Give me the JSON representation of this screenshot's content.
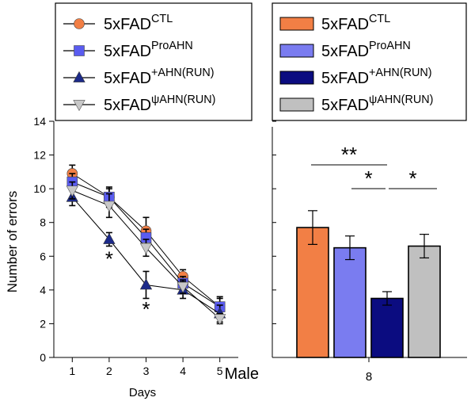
{
  "colors": {
    "ctl": "#f27f45",
    "pro": "#7a7cf0",
    "run": "#0b0c80",
    "psi": "#c0c0c0",
    "psi_marker": "#c8c8c8"
  },
  "legend_left": {
    "entries": [
      {
        "base": "5xFAD",
        "sup": "CTL",
        "marker": "circle",
        "color": "#f27f45"
      },
      {
        "base": "5xFAD",
        "sup": "ProAHN",
        "marker": "square",
        "color": "#5a5cf0"
      },
      {
        "base": "5xFAD",
        "sup": "+AHN(RUN)",
        "marker": "triangle-up",
        "color": "#1c2a8a"
      },
      {
        "base": "5xFAD",
        "sup": "ψAHN(RUN)",
        "marker": "triangle-down",
        "color": "#c8c8c8"
      }
    ]
  },
  "legend_right": {
    "entries": [
      {
        "base": "5xFAD",
        "sup": "CTL",
        "color": "#f27f45"
      },
      {
        "base": "5xFAD",
        "sup": "ProAHN",
        "color": "#7a7cf0"
      },
      {
        "base": "5xFAD",
        "sup": "+AHN(RUN)",
        "color": "#0b0c80"
      },
      {
        "base": "5xFAD",
        "sup": "ψAHN(RUN)",
        "color": "#c0c0c0"
      }
    ]
  },
  "chart_data": [
    {
      "type": "line",
      "xlabel": "Days",
      "ylabel": "Number of errors",
      "x": [
        1,
        2,
        3,
        4,
        5
      ],
      "xlim": [
        0.5,
        5.5
      ],
      "ylim": [
        0,
        14
      ],
      "yticks": [
        0,
        2,
        4,
        6,
        8,
        10,
        12,
        14
      ],
      "series": [
        {
          "name": "5xFAD CTL",
          "marker": "circle",
          "color": "#f27f45",
          "values": [
            10.9,
            9.5,
            7.5,
            4.8,
            3.0
          ],
          "err": [
            0.5,
            0.6,
            0.8,
            0.4,
            0.6
          ]
        },
        {
          "name": "5xFAD ProAHN",
          "marker": "square",
          "color": "#5a5cf0",
          "values": [
            10.4,
            9.5,
            7.1,
            4.4,
            3.0
          ],
          "err": [
            0.5,
            0.5,
            0.5,
            0.4,
            0.5
          ]
        },
        {
          "name": "5xFAD +AHN(RUN)",
          "marker": "triangle-up",
          "color": "#1c2a8a",
          "values": [
            9.5,
            7.0,
            4.3,
            4.0,
            2.6
          ],
          "err": [
            0.5,
            0.4,
            0.8,
            0.5,
            0.5
          ]
        },
        {
          "name": "5xFAD ψAHN(RUN)",
          "marker": "triangle-down",
          "color": "#c8c8c8",
          "values": [
            9.9,
            9.0,
            6.5,
            4.2,
            2.3
          ],
          "err": [
            0.5,
            0.7,
            0.5,
            0.4,
            0.3
          ]
        }
      ],
      "annotations": [
        {
          "x": 2,
          "y": 6.0,
          "text": "*"
        },
        {
          "x": 3,
          "y": 3.0,
          "text": "*"
        }
      ]
    },
    {
      "type": "bar",
      "categories": [
        "8"
      ],
      "category_prefix": "Male",
      "ylim": [
        0,
        14
      ],
      "yticks": [
        0,
        2,
        4,
        6,
        8,
        10,
        12,
        14
      ],
      "series": [
        {
          "name": "5xFAD CTL",
          "color": "#f27f45",
          "values": [
            7.7
          ],
          "err": [
            1.0
          ]
        },
        {
          "name": "5xFAD ProAHN",
          "color": "#7a7cf0",
          "values": [
            6.5
          ],
          "err": [
            0.7
          ]
        },
        {
          "name": "5xFAD +AHN(RUN)",
          "color": "#0b0c80",
          "values": [
            3.5
          ],
          "err": [
            0.4
          ]
        },
        {
          "name": "5xFAD ψAHN(RUN)",
          "color": "#c0c0c0",
          "values": [
            6.6
          ],
          "err": [
            0.7
          ]
        }
      ],
      "significance": [
        {
          "from": 0,
          "to": 2,
          "label": "**"
        },
        {
          "from": 1,
          "to": 2,
          "label": "*"
        },
        {
          "from": 2,
          "to": 3,
          "label": "*"
        }
      ]
    }
  ]
}
